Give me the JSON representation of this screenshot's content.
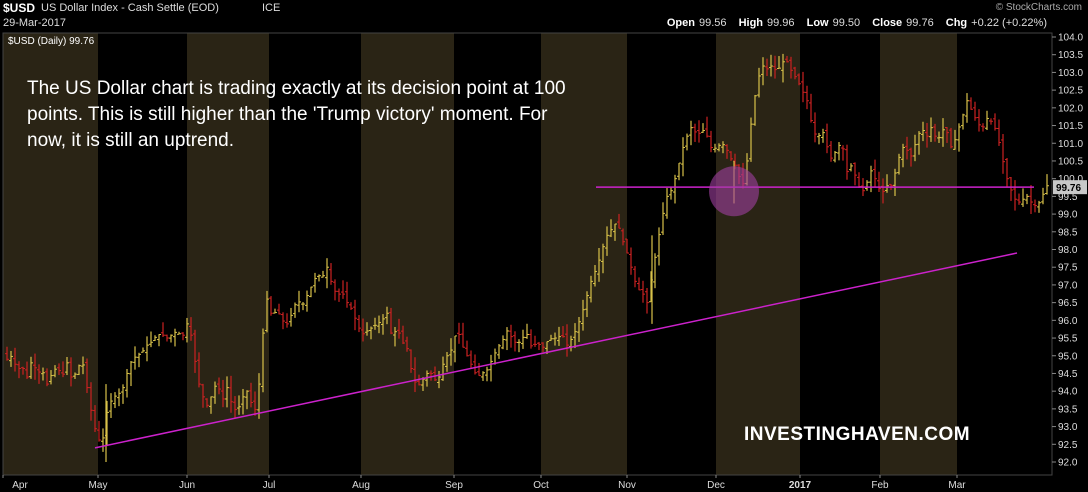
{
  "header": {
    "ticker": "$USD",
    "name": "US Dollar Index - Cash Settle (EOD)",
    "exchange": "ICE",
    "copyright": "© StockCharts.com",
    "date": "29-Mar-2017",
    "open_label": "Open",
    "open": "99.56",
    "high_label": "High",
    "high": "99.96",
    "low_label": "Low",
    "low": "99.50",
    "close_label": "Close",
    "close": "99.76",
    "chg_label": "Chg",
    "chg": "+0.22 (+0.22%)"
  },
  "series_label": "$USD (Daily) 99.76",
  "annotation": "The US Dollar chart is trading exactly at its decision point at 100 points. This is still higher than the 'Trump victory' moment. For now, it is still an uptrend.",
  "watermark": "INVESTINGHAVEN.COM",
  "colors": {
    "bar": "#d8c24a",
    "bar_down": "#cc2222",
    "trendline": "#cc22cc",
    "shade": "#2a2415",
    "highlight_circle": "#a040a0"
  },
  "chart_data": {
    "type": "ohlc",
    "title": "$USD (Daily) 99.76",
    "y_axis": {
      "min": 92.0,
      "max": 104.0,
      "position": "right",
      "ticks": [
        "104.0",
        "103.5",
        "103.0",
        "102.5",
        "102.0",
        "101.5",
        "101.0",
        "100.5",
        "100.0",
        "99.5",
        "99.0",
        "98.5",
        "98.0",
        "97.5",
        "97.0",
        "96.5",
        "96.0",
        "95.5",
        "95.0",
        "94.5",
        "94.0",
        "93.5",
        "93.0",
        "92.5",
        "92.0"
      ]
    },
    "x_axis": {
      "months": [
        "Apr",
        "May",
        "Jun",
        "Jul",
        "Aug",
        "Sep",
        "Oct",
        "Nov",
        "Dec",
        "2017",
        "Feb",
        "Mar"
      ],
      "bold_label": "2017"
    },
    "last_price_tag": "99.76",
    "reference_level": 99.76,
    "uptrend_line": {
      "start": {
        "date": "May 2016",
        "value": 92.4
      },
      "end": {
        "date": "Mar 2017",
        "value": 97.9
      }
    },
    "highlight": {
      "date": "early Dec 2016",
      "value": 99.7
    },
    "price_path": [
      [
        0,
        95.1
      ],
      [
        5,
        94.9
      ],
      [
        10,
        95.0
      ],
      [
        15,
        94.6
      ],
      [
        20,
        94.7
      ],
      [
        25,
        94.4
      ],
      [
        30,
        94.9
      ],
      [
        35,
        94.5
      ],
      [
        40,
        94.6
      ],
      [
        45,
        94.2
      ],
      [
        50,
        94.5
      ],
      [
        55,
        94.7
      ],
      [
        60,
        94.4
      ],
      [
        65,
        94.8
      ],
      [
        70,
        94.3
      ],
      [
        75,
        94.6
      ],
      [
        80,
        94.9
      ],
      [
        85,
        94.1
      ],
      [
        90,
        93.3
      ],
      [
        95,
        92.7
      ],
      [
        100,
        92.5
      ],
      [
        105,
        93.4
      ],
      [
        110,
        93.8
      ],
      [
        115,
        93.9
      ],
      [
        120,
        94.0
      ],
      [
        125,
        94.5
      ],
      [
        130,
        94.9
      ],
      [
        135,
        95.0
      ],
      [
        140,
        95.1
      ],
      [
        145,
        95.3
      ],
      [
        150,
        95.4
      ],
      [
        155,
        95.6
      ],
      [
        160,
        95.6
      ],
      [
        165,
        95.5
      ],
      [
        170,
        95.6
      ],
      [
        175,
        95.7
      ],
      [
        180,
        95.5
      ],
      [
        185,
        95.9
      ],
      [
        190,
        95.5
      ],
      [
        195,
        94.4
      ],
      [
        200,
        93.9
      ],
      [
        205,
        93.6
      ],
      [
        210,
        93.9
      ],
      [
        215,
        94.3
      ],
      [
        220,
        93.7
      ],
      [
        225,
        94.1
      ],
      [
        230,
        93.6
      ],
      [
        235,
        93.4
      ],
      [
        240,
        93.8
      ],
      [
        245,
        94.0
      ],
      [
        250,
        93.6
      ],
      [
        255,
        93.4
      ],
      [
        260,
        95.4
      ],
      [
        265,
        96.6
      ],
      [
        270,
        96.1
      ],
      [
        275,
        96.3
      ],
      [
        280,
        96.0
      ],
      [
        285,
        95.9
      ],
      [
        290,
        96.2
      ],
      [
        295,
        96.6
      ],
      [
        300,
        96.4
      ],
      [
        305,
        96.7
      ],
      [
        310,
        97.0
      ],
      [
        315,
        97.3
      ],
      [
        320,
        97.2
      ],
      [
        325,
        97.5
      ],
      [
        330,
        97.0
      ],
      [
        335,
        96.7
      ],
      [
        340,
        96.8
      ],
      [
        345,
        96.5
      ],
      [
        350,
        96.3
      ],
      [
        355,
        95.9
      ],
      [
        360,
        95.6
      ],
      [
        365,
        95.7
      ],
      [
        370,
        95.8
      ],
      [
        375,
        95.9
      ],
      [
        380,
        96.0
      ],
      [
        385,
        96.2
      ],
      [
        390,
        95.5
      ],
      [
        395,
        95.8
      ],
      [
        400,
        95.4
      ],
      [
        405,
        95.2
      ],
      [
        410,
        94.5
      ],
      [
        415,
        94.1
      ],
      [
        420,
        94.3
      ],
      [
        425,
        94.5
      ],
      [
        430,
        94.5
      ],
      [
        435,
        94.2
      ],
      [
        440,
        94.7
      ],
      [
        445,
        95.0
      ],
      [
        450,
        95.2
      ],
      [
        455,
        95.8
      ],
      [
        460,
        95.3
      ],
      [
        465,
        95.0
      ],
      [
        470,
        94.7
      ],
      [
        475,
        94.4
      ],
      [
        480,
        94.5
      ],
      [
        485,
        94.6
      ],
      [
        490,
        94.9
      ],
      [
        495,
        95.2
      ],
      [
        500,
        95.4
      ],
      [
        505,
        95.7
      ],
      [
        510,
        95.5
      ],
      [
        515,
        95.3
      ],
      [
        520,
        95.5
      ],
      [
        525,
        95.6
      ],
      [
        530,
        95.2
      ],
      [
        535,
        95.4
      ],
      [
        540,
        95.2
      ],
      [
        545,
        95.4
      ],
      [
        550,
        95.5
      ],
      [
        555,
        95.5
      ],
      [
        560,
        95.6
      ],
      [
        565,
        95.3
      ],
      [
        570,
        95.5
      ],
      [
        575,
        95.8
      ],
      [
        580,
        96.2
      ],
      [
        585,
        96.7
      ],
      [
        590,
        97.2
      ],
      [
        595,
        97.5
      ],
      [
        600,
        98.0
      ],
      [
        605,
        98.4
      ],
      [
        610,
        98.6
      ],
      [
        615,
        98.8
      ],
      [
        620,
        98.3
      ],
      [
        625,
        97.9
      ],
      [
        630,
        97.4
      ],
      [
        635,
        96.9
      ],
      [
        640,
        96.8
      ],
      [
        645,
        96.5
      ],
      [
        650,
        97.3
      ],
      [
        655,
        98.1
      ],
      [
        660,
        98.9
      ],
      [
        665,
        99.5
      ],
      [
        670,
        99.7
      ],
      [
        675,
        100.2
      ],
      [
        680,
        100.8
      ],
      [
        685,
        101.2
      ],
      [
        690,
        101.5
      ],
      [
        695,
        101.2
      ],
      [
        700,
        101.4
      ],
      [
        705,
        101.2
      ],
      [
        710,
        100.8
      ],
      [
        715,
        100.9
      ],
      [
        720,
        101.0
      ],
      [
        725,
        100.8
      ],
      [
        730,
        100.5
      ],
      [
        735,
        100.3
      ],
      [
        740,
        99.7
      ],
      [
        745,
        100.5
      ],
      [
        750,
        101.8
      ],
      [
        755,
        102.7
      ],
      [
        760,
        103.2
      ],
      [
        765,
        103.1
      ],
      [
        770,
        103.2
      ],
      [
        775,
        103.0
      ],
      [
        780,
        103.3
      ],
      [
        785,
        103.3
      ],
      [
        790,
        103.0
      ],
      [
        795,
        102.8
      ],
      [
        800,
        102.5
      ],
      [
        805,
        102.2
      ],
      [
        810,
        101.5
      ],
      [
        815,
        101.1
      ],
      [
        820,
        101.4
      ],
      [
        825,
        100.9
      ],
      [
        830,
        100.5
      ],
      [
        835,
        100.9
      ],
      [
        840,
        101.0
      ],
      [
        845,
        100.2
      ],
      [
        850,
        100.4
      ],
      [
        855,
        99.9
      ],
      [
        860,
        99.6
      ],
      [
        865,
        99.9
      ],
      [
        870,
        100.3
      ],
      [
        875,
        99.8
      ],
      [
        880,
        99.6
      ],
      [
        885,
        99.8
      ],
      [
        890,
        99.8
      ],
      [
        895,
        100.4
      ],
      [
        900,
        100.9
      ],
      [
        905,
        100.8
      ],
      [
        910,
        100.6
      ],
      [
        915,
        101.2
      ],
      [
        920,
        101.4
      ],
      [
        925,
        101.2
      ],
      [
        930,
        101.5
      ],
      [
        935,
        101.0
      ],
      [
        940,
        101.4
      ],
      [
        945,
        101.3
      ],
      [
        950,
        100.8
      ],
      [
        955,
        101.3
      ],
      [
        960,
        101.7
      ],
      [
        965,
        102.2
      ],
      [
        970,
        101.9
      ],
      [
        975,
        101.6
      ],
      [
        980,
        101.4
      ],
      [
        985,
        101.7
      ],
      [
        990,
        101.6
      ],
      [
        995,
        101.3
      ],
      [
        1000,
        100.6
      ],
      [
        1005,
        100.0
      ],
      [
        1010,
        99.6
      ],
      [
        1015,
        99.3
      ],
      [
        1020,
        99.4
      ],
      [
        1025,
        99.5
      ],
      [
        1030,
        99.3
      ],
      [
        1035,
        99.2
      ],
      [
        1040,
        99.5
      ],
      [
        1045,
        99.8
      ]
    ]
  }
}
